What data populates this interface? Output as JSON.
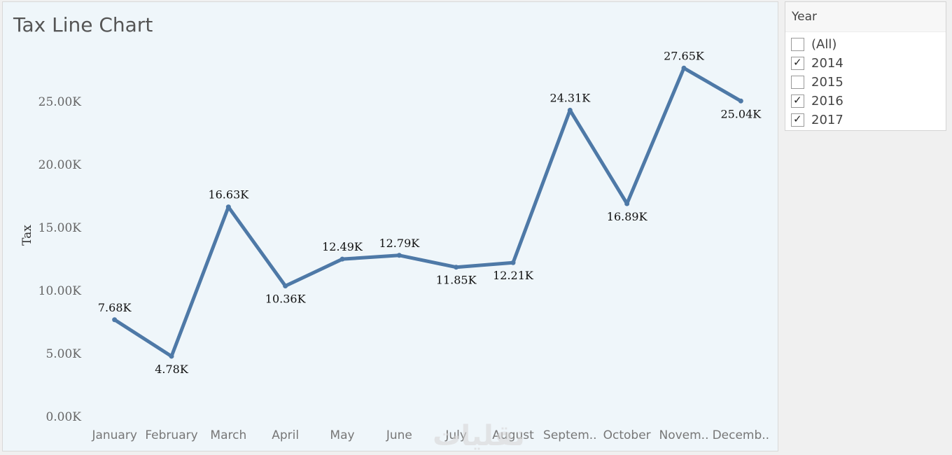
{
  "chart_data": {
    "type": "line",
    "title": "Tax Line Chart",
    "ylabel": "Tax",
    "xlabel": "",
    "categories": [
      "January",
      "February",
      "March",
      "April",
      "May",
      "June",
      "July",
      "August",
      "Septem..",
      "October",
      "Novem..",
      "Decemb.."
    ],
    "values": [
      7680,
      4780,
      16630,
      10360,
      12490,
      12790,
      11850,
      12210,
      24310,
      16890,
      27650,
      25040
    ],
    "data_labels": [
      "7.68K",
      "4.78K",
      "16.63K",
      "10.36K",
      "12.49K",
      "12.79K",
      "11.85K",
      "12.21K",
      "24.31K",
      "16.89K",
      "27.65K",
      "25.04K"
    ],
    "yticks": [
      0,
      5000,
      10000,
      15000,
      20000,
      25000
    ],
    "ytick_labels": [
      "0.00K",
      "5.00K",
      "10.00K",
      "15.00K",
      "20.00K",
      "25.00K"
    ],
    "ylim": [
      0,
      29000
    ],
    "grid": false,
    "line_color": "#4e79a7"
  },
  "filter": {
    "title": "Year",
    "items": [
      {
        "label": "(All)",
        "checked": false
      },
      {
        "label": "2014",
        "checked": true
      },
      {
        "label": "2015",
        "checked": false
      },
      {
        "label": "2016",
        "checked": true
      },
      {
        "label": "2017",
        "checked": true
      }
    ]
  },
  "watermark": "نقلیات"
}
